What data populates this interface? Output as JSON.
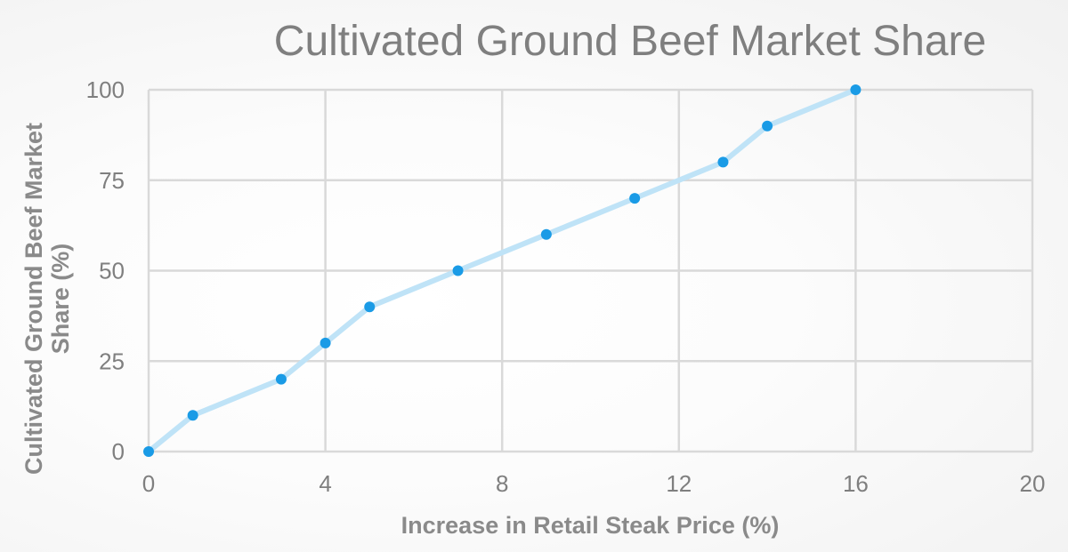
{
  "chart_data": {
    "type": "line",
    "title": "Cultivated Ground Beef Market Share",
    "xlabel": "Increase in Retail Steak Price (%)",
    "ylabel_lines": [
      "Cultivated Ground Beef Market",
      "Share (%)"
    ],
    "xlim": [
      0,
      20
    ],
    "ylim": [
      0,
      100
    ],
    "x_ticks": [
      0,
      4,
      8,
      12,
      16,
      20
    ],
    "y_ticks": [
      0,
      25,
      50,
      75,
      100
    ],
    "x_grid_lines": [
      0,
      4,
      8,
      12,
      16,
      20
    ],
    "grid": true,
    "legend": "none",
    "series": [
      {
        "color": "#bfe3f7",
        "marker_color": "#1a9be6",
        "x": [
          0,
          1,
          3,
          4,
          5,
          7,
          9,
          11,
          13,
          14,
          16
        ],
        "y": [
          0,
          10,
          20,
          30,
          40,
          50,
          60,
          70,
          80,
          90,
          100
        ]
      }
    ]
  }
}
